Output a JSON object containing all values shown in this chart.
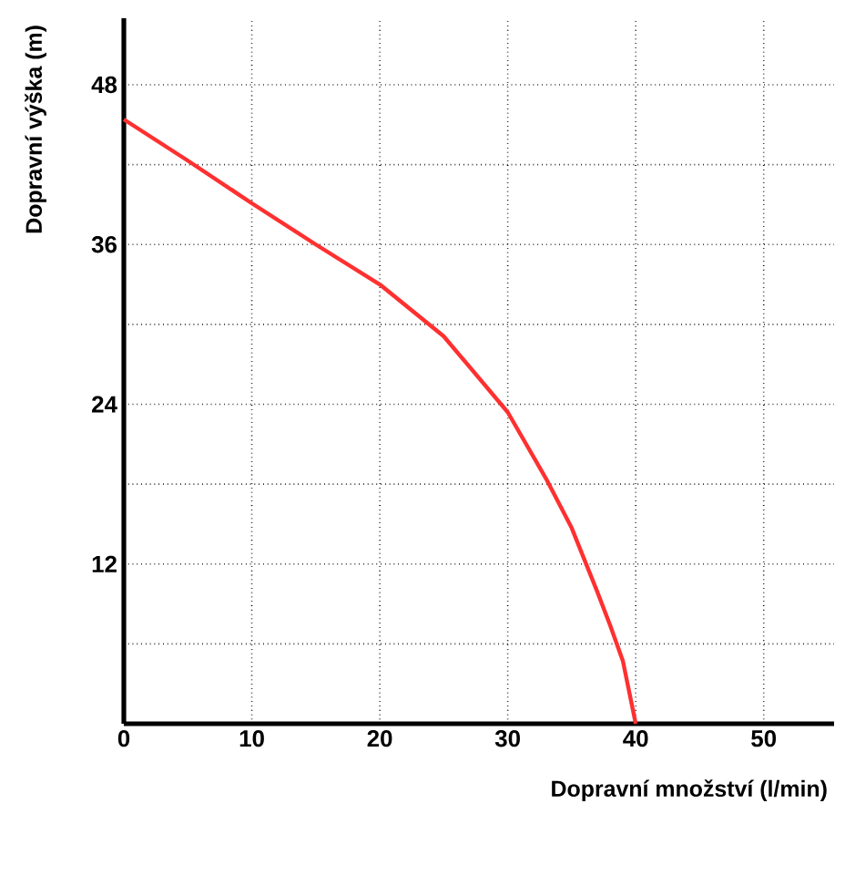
{
  "chart_data": {
    "type": "line",
    "xlabel": "Dopravní množství (l/min)",
    "ylabel": "Dopravní výška (m)",
    "x": [
      0,
      5,
      10,
      15,
      20,
      25,
      30,
      33,
      35,
      37,
      38,
      39,
      40
    ],
    "series": [
      {
        "color": "#ff3030",
        "values": [
          45.4,
          42.3,
          39.1,
          36,
          33,
          29.1,
          23.4,
          18.4,
          14.7,
          9.9,
          7.4,
          4.7,
          0
        ]
      }
    ],
    "xlim": [
      0,
      55.5
    ],
    "ylim": [
      0,
      53
    ],
    "xticks": [
      0,
      10,
      20,
      30,
      40,
      50
    ],
    "yticks": [
      {
        "value": 6,
        "label": null
      },
      12,
      {
        "value": 18,
        "label": null
      },
      24,
      {
        "value": 30,
        "label": null
      },
      36,
      {
        "value": 42,
        "label": null
      },
      48
    ],
    "grid": true,
    "line_style": "solid"
  }
}
